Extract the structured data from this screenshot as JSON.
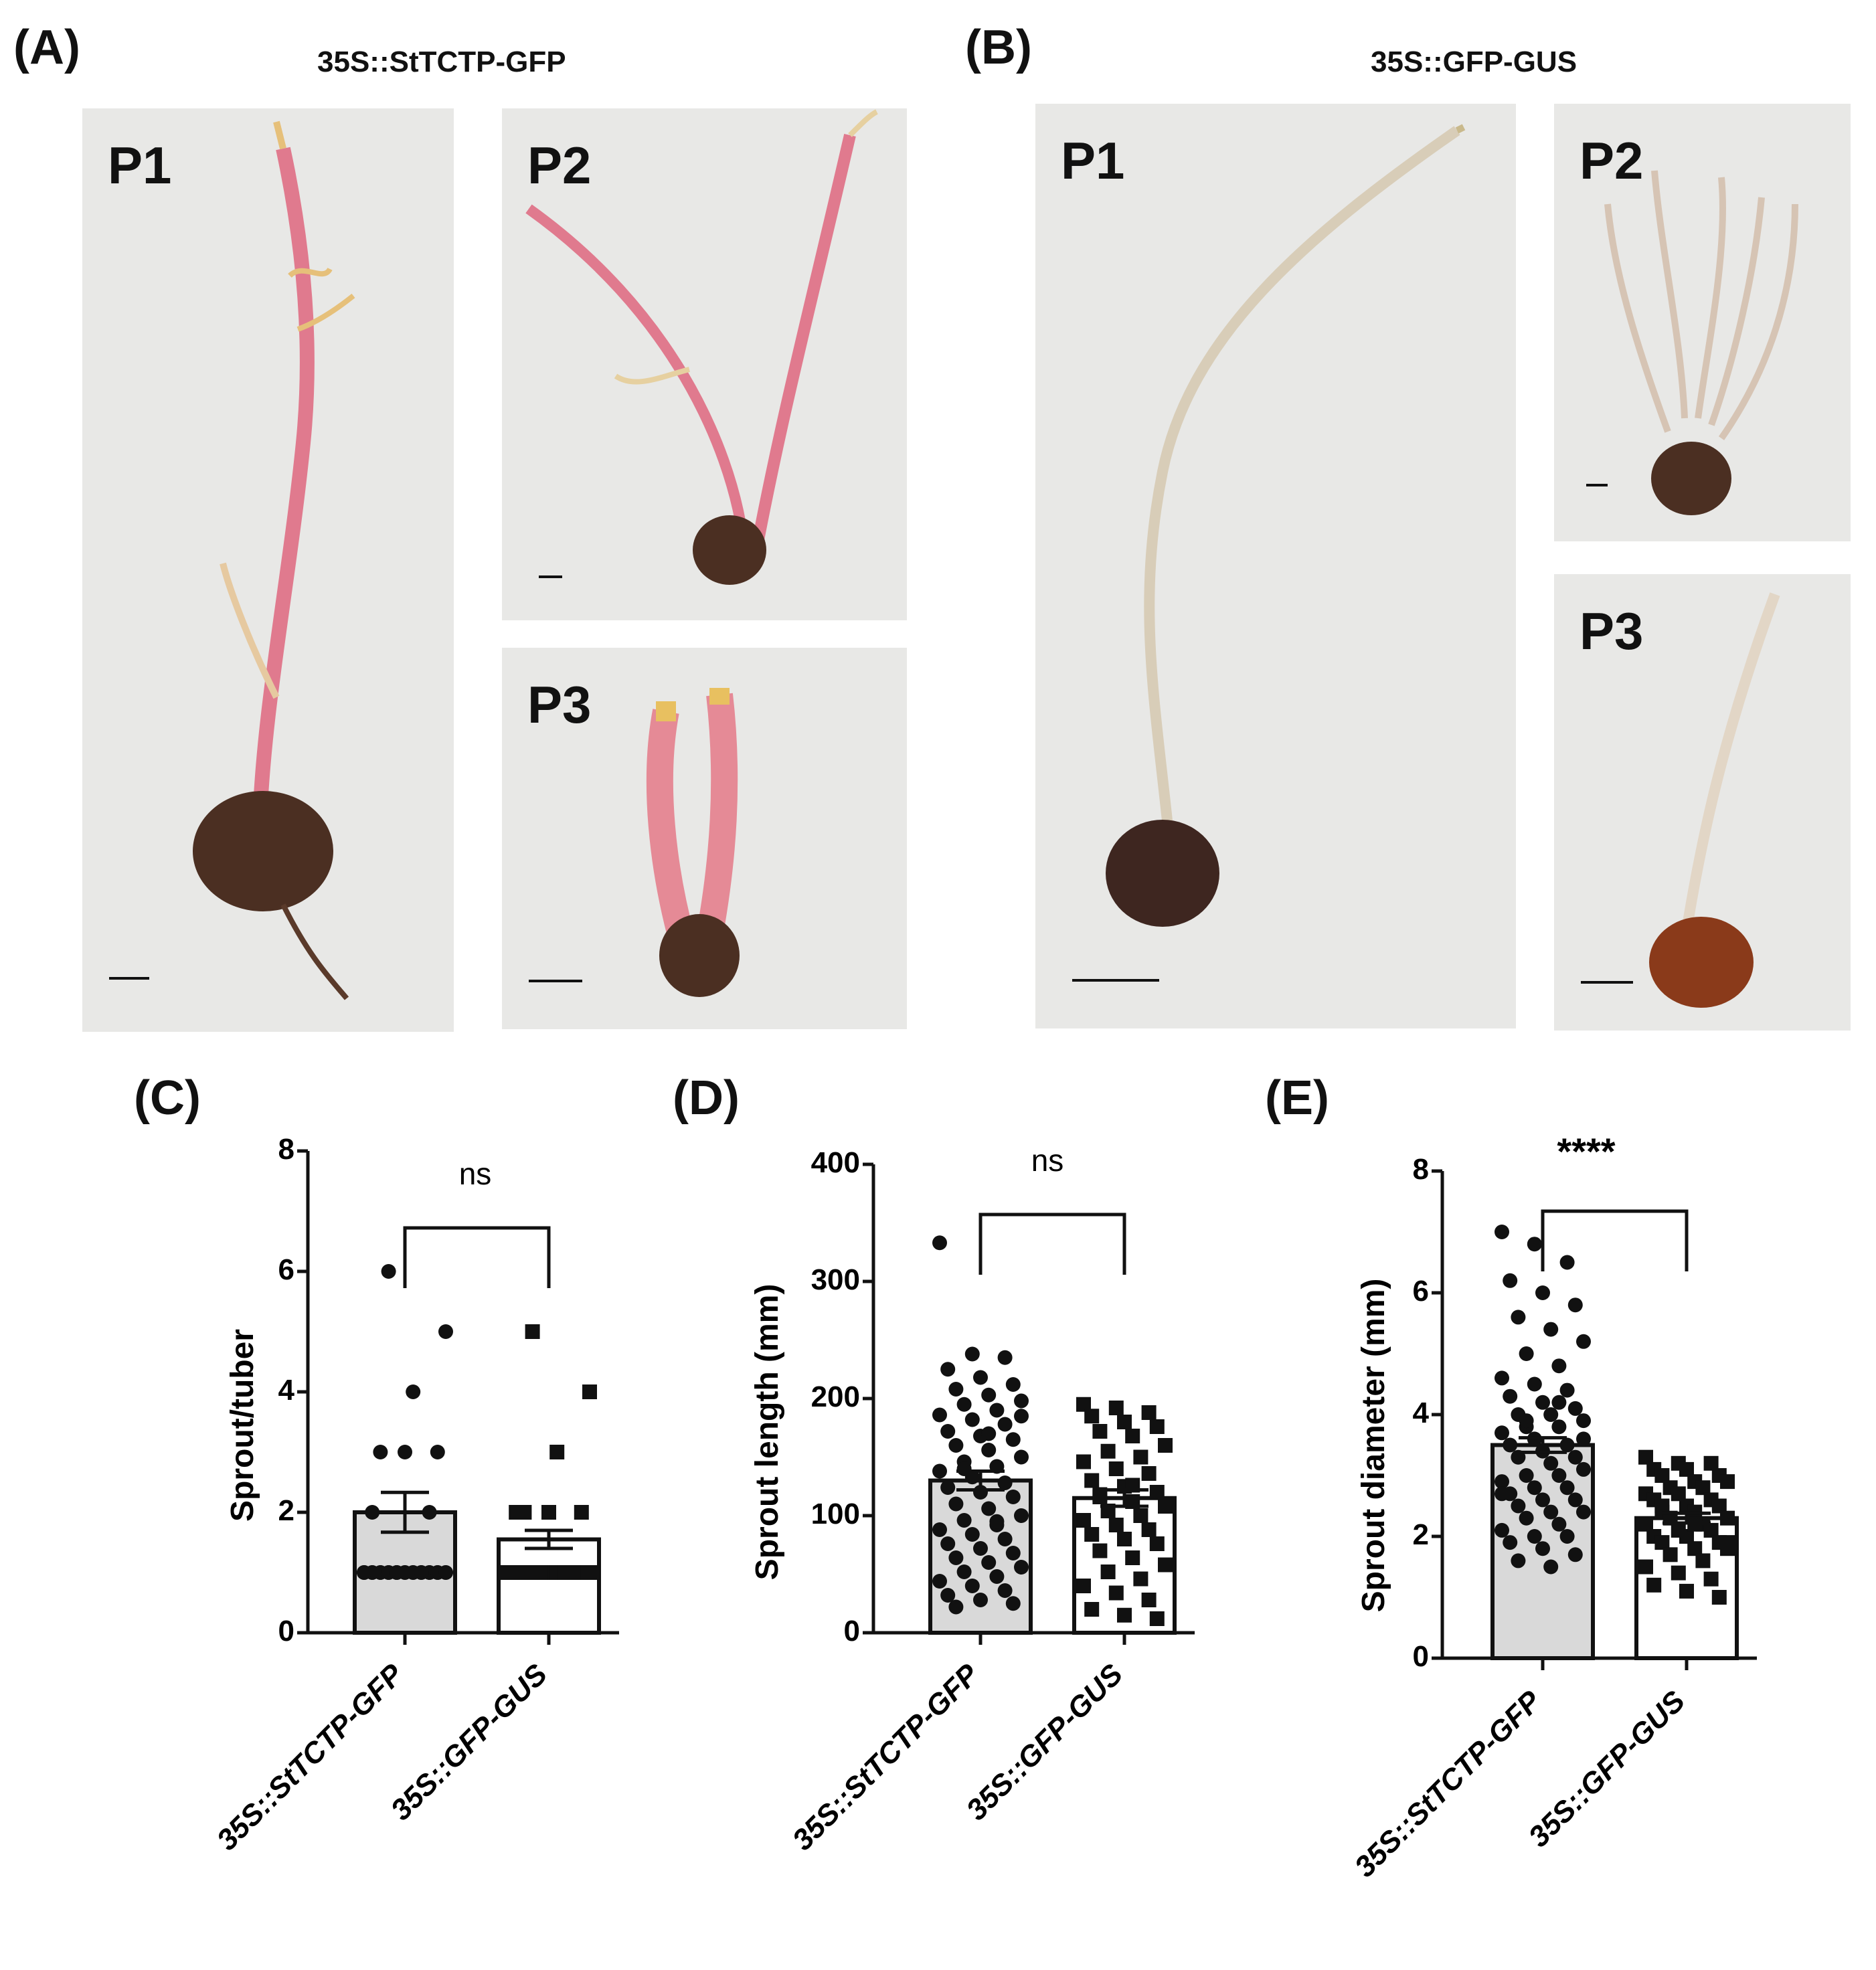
{
  "figure": {
    "panel_A": {
      "letter": "(A)",
      "title": "35S::StTCTP-GFP",
      "photos": [
        {
          "label": "P1"
        },
        {
          "label": "P2"
        },
        {
          "label": "P3"
        }
      ]
    },
    "panel_B": {
      "letter": "(B)",
      "title": "35S::GFP-GUS",
      "photos": [
        {
          "label": "P1"
        },
        {
          "label": "P2"
        },
        {
          "label": "P3"
        }
      ]
    },
    "colors": {
      "bar_fill_tctp": "#d9d9d9",
      "bar_fill_gus": "#ffffff",
      "marker": "#111111",
      "photo_bg": "#e8e8e6",
      "sprout_pink": "#e07a8e",
      "sprout_pale": "#d8cdb8",
      "tuber": "#4b2f22"
    }
  },
  "chart_data": [
    {
      "letter": "(C)",
      "type": "bar",
      "ylabel": "Sprout/tuber",
      "ylim": [
        0,
        8
      ],
      "yticks": [
        "0",
        "2",
        "4",
        "6",
        "8"
      ],
      "categories": [
        "35S::StTCTP-GFP",
        "35S::GFP-GUS"
      ],
      "means": [
        2.0,
        1.55
      ],
      "sem": [
        0.33,
        0.15
      ],
      "significance": "ns",
      "points": [
        [
          1,
          1,
          1,
          1,
          1,
          1,
          1,
          1,
          1,
          1,
          1,
          1,
          1,
          1,
          1,
          1,
          1,
          1,
          1,
          1,
          1,
          1,
          1,
          1,
          2,
          2,
          3,
          3,
          3,
          4,
          5,
          6
        ],
        [
          1,
          1,
          1,
          1,
          1,
          1,
          1,
          1,
          1,
          1,
          1,
          1,
          1,
          1,
          1,
          1,
          1,
          1,
          1,
          1,
          1,
          1,
          1,
          1,
          1,
          2,
          2,
          2,
          2,
          3,
          4,
          5
        ]
      ],
      "markers": [
        "circle",
        "square"
      ]
    },
    {
      "letter": "(D)",
      "type": "bar",
      "ylabel": "Sprout length (mm)",
      "ylim": [
        0,
        400
      ],
      "yticks": [
        "0",
        "100",
        "200",
        "300",
        "400"
      ],
      "categories": [
        "35S::StTCTP-GFP",
        "35S::GFP-GUS"
      ],
      "means": [
        130,
        115
      ],
      "sem": [
        8,
        7
      ],
      "significance": "ns",
      "points": [
        [
          333,
          238,
          235,
          225,
          218,
          212,
          208,
          203,
          198,
          195,
          190,
          186,
          182,
          178,
          172,
          168,
          165,
          160,
          156,
          150,
          146,
          142,
          138,
          133,
          128,
          124,
          120,
          116,
          110,
          106,
          100,
          96,
          92,
          88,
          84,
          80,
          76,
          72,
          68,
          64,
          60,
          56,
          52,
          48,
          44,
          40,
          36,
          32,
          28,
          25,
          22,
          170,
          185,
          140,
          95
        ],
        [
          195,
          192,
          188,
          185,
          180,
          176,
          172,
          168,
          160,
          155,
          150,
          146,
          140,
          136,
          130,
          125,
          120,
          116,
          112,
          108,
          104,
          100,
          96,
          92,
          88,
          84,
          80,
          76,
          70,
          64,
          58,
          52,
          46,
          40,
          34,
          28,
          20,
          15,
          12,
          118,
          126
        ]
      ],
      "markers": [
        "circle",
        "square"
      ]
    },
    {
      "letter": "(E)",
      "type": "bar",
      "ylabel": "Sprout diameter (mm)",
      "ylim": [
        0,
        8
      ],
      "yticks": [
        "0",
        "2",
        "4",
        "6",
        "8"
      ],
      "categories": [
        "35S::StTCTP-GFP",
        "35S::GFP-GUS"
      ],
      "means": [
        3.5,
        2.3
      ],
      "sem": [
        0.12,
        0.08
      ],
      "significance": "****",
      "points": [
        [
          7.0,
          6.8,
          6.5,
          6.2,
          6.0,
          5.8,
          5.6,
          5.4,
          5.2,
          5.0,
          4.8,
          4.6,
          4.5,
          4.4,
          4.3,
          4.2,
          4.1,
          4.0,
          4.0,
          3.9,
          3.8,
          3.8,
          3.7,
          3.6,
          3.5,
          3.5,
          3.4,
          3.3,
          3.3,
          3.2,
          3.1,
          3.0,
          3.0,
          2.9,
          2.8,
          2.8,
          2.7,
          2.6,
          2.6,
          2.5,
          2.4,
          2.4,
          2.3,
          2.2,
          2.1,
          2.0,
          2.0,
          1.9,
          1.8,
          1.7,
          1.6,
          1.5,
          3.6,
          3.9,
          4.2,
          2.7
        ],
        [
          3.3,
          3.2,
          3.2,
          3.1,
          3.1,
          3.0,
          3.0,
          2.9,
          2.9,
          2.8,
          2.8,
          2.7,
          2.7,
          2.6,
          2.6,
          2.5,
          2.5,
          2.4,
          2.4,
          2.3,
          2.3,
          2.2,
          2.2,
          2.1,
          2.1,
          2.0,
          2.0,
          1.9,
          1.9,
          1.8,
          1.8,
          1.7,
          1.6,
          1.5,
          1.4,
          1.3,
          1.2,
          1.1,
          1.0,
          2.5,
          2.2,
          1.9
        ]
      ],
      "markers": [
        "circle",
        "square"
      ]
    }
  ]
}
